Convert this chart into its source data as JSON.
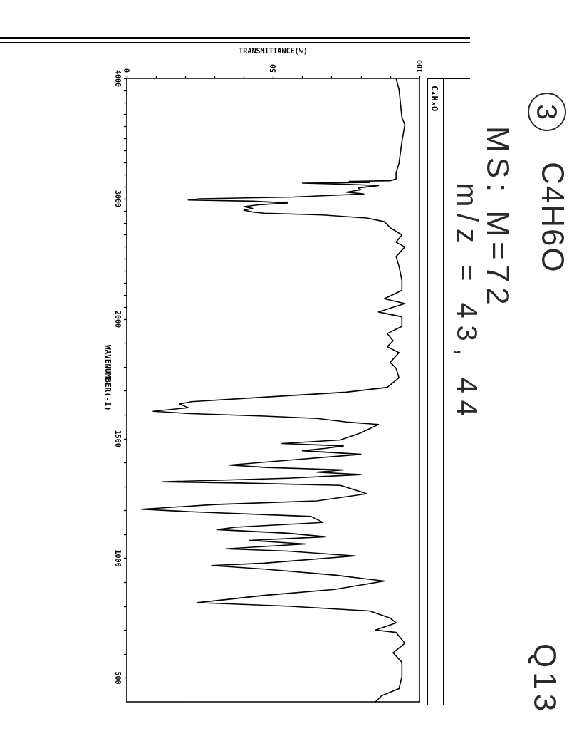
{
  "chart_data": [
    {
      "type": "line",
      "xlabel": "TRANSMITTANCE(%)",
      "annotations": [
        "3",
        "C4H6O",
        "MS: M=72",
        "m/z = 43, 44",
        "Q13",
        "C₄H₈O"
      ],
      "xlim": [
        0,
        100
      ],
      "ylim": [
        2000,
        4000
      ],
      "xticks": [
        0,
        {
          "value": 10,
          "label": null
        },
        {
          "value": 20,
          "label": null
        },
        {
          "value": 30,
          "label": null
        },
        {
          "value": 40,
          "label": null
        },
        50,
        {
          "value": 60,
          "label": null
        },
        {
          "value": 70,
          "label": null
        },
        {
          "value": 80,
          "label": null
        },
        {
          "value": 90,
          "label": null
        },
        100
      ],
      "yticks": [
        4000,
        {
          "value": 3900,
          "label": null
        },
        {
          "value": 3800,
          "label": null
        },
        {
          "value": 3700,
          "label": null
        },
        {
          "value": 3600,
          "label": null
        },
        {
          "value": 3500,
          "label": null
        },
        {
          "value": 3400,
          "label": null
        },
        {
          "value": 3300,
          "label": null
        },
        {
          "value": 3200,
          "label": null
        },
        {
          "value": 3100,
          "label": null
        },
        3000,
        {
          "value": 2900,
          "label": null
        },
        {
          "value": 2800,
          "label": null
        },
        {
          "value": 2700,
          "label": null
        },
        {
          "value": 2600,
          "label": null
        },
        {
          "value": 2500,
          "label": null
        },
        {
          "value": 2400,
          "label": null
        },
        {
          "value": 2300,
          "label": null
        },
        {
          "value": 2200,
          "label": null
        },
        {
          "value": 2100,
          "label": null
        }
      ],
      "x": [
        92,
        93,
        94,
        95,
        94,
        93,
        92,
        92,
        90,
        76,
        83,
        60,
        76,
        86,
        79,
        80,
        75,
        81,
        57,
        25,
        21,
        43,
        55,
        45,
        40,
        43,
        40,
        43,
        47,
        67,
        82,
        88,
        90,
        94,
        92,
        95,
        92,
        93,
        94,
        94,
        88,
        95,
        86,
        94,
        94
      ],
      "values": [
        4000,
        3910,
        3675,
        3615,
        3475,
        3295,
        3215,
        3165,
        3150,
        3145,
        3135,
        3130,
        3120,
        3110,
        3090,
        3075,
        3055,
        3040,
        3015,
        3000,
        2990,
        2980,
        2965,
        2950,
        2935,
        2920,
        2905,
        2890,
        2880,
        2865,
        2840,
        2810,
        2760,
        2700,
        2640,
        2600,
        2520,
        2440,
        2320,
        2240,
        2170,
        2130,
        2060,
        2020,
        2000
      ],
      "color": "#000000"
    },
    {
      "type": "line",
      "ylabel": "WAVENUMBER(-1)",
      "tick_labels": "y",
      "xlim": [
        0,
        100
      ],
      "ylim": [
        400,
        2000
      ],
      "yticks": [
        2000,
        {
          "value": 1900,
          "label": null
        },
        {
          "value": 1800,
          "label": null
        },
        {
          "value": 1700,
          "label": null
        },
        {
          "value": 1600,
          "label": null
        },
        1500,
        {
          "value": 1400,
          "label": null
        },
        {
          "value": 1300,
          "label": null
        },
        {
          "value": 1200,
          "label": null
        },
        {
          "value": 1100,
          "label": null
        },
        1000,
        {
          "value": 900,
          "label": null
        },
        {
          "value": 800,
          "label": null
        },
        {
          "value": 700,
          "label": null
        },
        {
          "value": 600,
          "label": null
        },
        500
      ],
      "x": [
        94,
        94,
        89,
        91,
        89,
        93,
        90,
        92,
        93,
        89,
        75,
        55,
        22,
        18,
        21,
        9,
        22,
        47,
        65,
        75,
        86,
        80,
        73,
        53,
        74,
        68,
        60,
        80,
        55,
        35,
        48,
        74,
        65,
        80,
        55,
        12,
        38,
        73,
        82,
        65,
        30,
        5,
        22,
        63,
        67,
        37,
        31,
        55,
        68,
        42,
        61,
        34,
        55,
        78,
        47,
        29,
        47,
        71,
        88,
        71,
        47,
        32,
        24,
        55,
        83,
        90,
        92,
        85,
        92,
        95,
        91,
        94,
        94,
        93,
        87,
        85
      ],
      "values": [
        2000,
        1970,
        1940,
        1910,
        1885,
        1860,
        1820,
        1795,
        1755,
        1715,
        1695,
        1680,
        1655,
        1645,
        1630,
        1615,
        1605,
        1595,
        1585,
        1570,
        1560,
        1525,
        1495,
        1480,
        1470,
        1460,
        1450,
        1435,
        1410,
        1390,
        1380,
        1370,
        1360,
        1350,
        1335,
        1320,
        1315,
        1305,
        1270,
        1240,
        1225,
        1205,
        1195,
        1175,
        1150,
        1130,
        1120,
        1105,
        1090,
        1075,
        1060,
        1040,
        1030,
        1010,
        980,
        970,
        955,
        930,
        905,
        870,
        845,
        825,
        815,
        800,
        780,
        750,
        730,
        700,
        690,
        645,
        605,
        565,
        505,
        455,
        425,
        400
      ],
      "color": "#000000"
    }
  ]
}
